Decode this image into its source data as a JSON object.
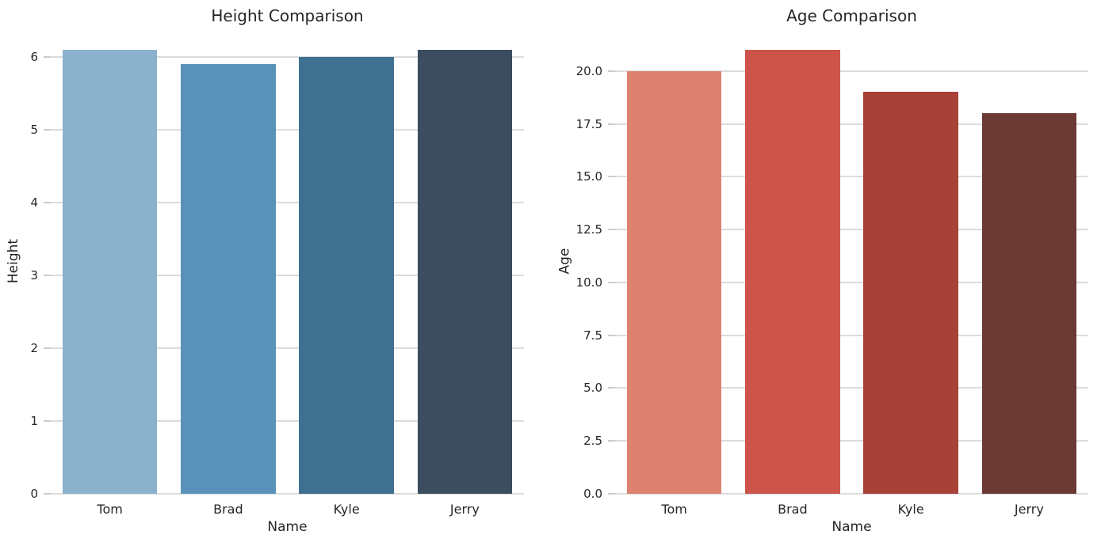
{
  "figure": {
    "background": "#ffffff",
    "text_color": "#262626",
    "grid_color": "#dcdcdc",
    "tick_color": "#cccccc"
  },
  "chart_data": [
    {
      "type": "bar",
      "title": "Height Comparison",
      "xlabel": "Name",
      "ylabel": "Height",
      "categories": [
        "Tom",
        "Brad",
        "Kyle",
        "Jerry"
      ],
      "values": [
        6.1,
        5.9,
        6.0,
        6.1
      ],
      "ylim": [
        0,
        6.4
      ],
      "yticks": [
        0,
        1,
        2,
        3,
        4,
        5,
        6
      ],
      "ytick_labels": [
        "0",
        "1",
        "2",
        "3",
        "4",
        "5",
        "6"
      ],
      "bar_colors": [
        "#8bb1cd",
        "#5a91bb",
        "#40708f",
        "#3b4d5f"
      ],
      "grid": true,
      "legend": null
    },
    {
      "type": "bar",
      "title": "Age Comparison",
      "xlabel": "Name",
      "ylabel": "Age",
      "categories": [
        "Tom",
        "Brad",
        "Kyle",
        "Jerry"
      ],
      "values": [
        20,
        21,
        19,
        18
      ],
      "ylim": [
        0,
        22.05
      ],
      "yticks": [
        0,
        2.5,
        5,
        7.5,
        10,
        12.5,
        15,
        17.5,
        20
      ],
      "ytick_labels": [
        "0.0",
        "2.5",
        "5.0",
        "7.5",
        "10.0",
        "12.5",
        "15.0",
        "17.5",
        "20.0"
      ],
      "bar_colors": [
        "#dd8170",
        "#cd544a",
        "#a84138",
        "#6b3a34"
      ],
      "grid": true,
      "legend": null
    }
  ]
}
